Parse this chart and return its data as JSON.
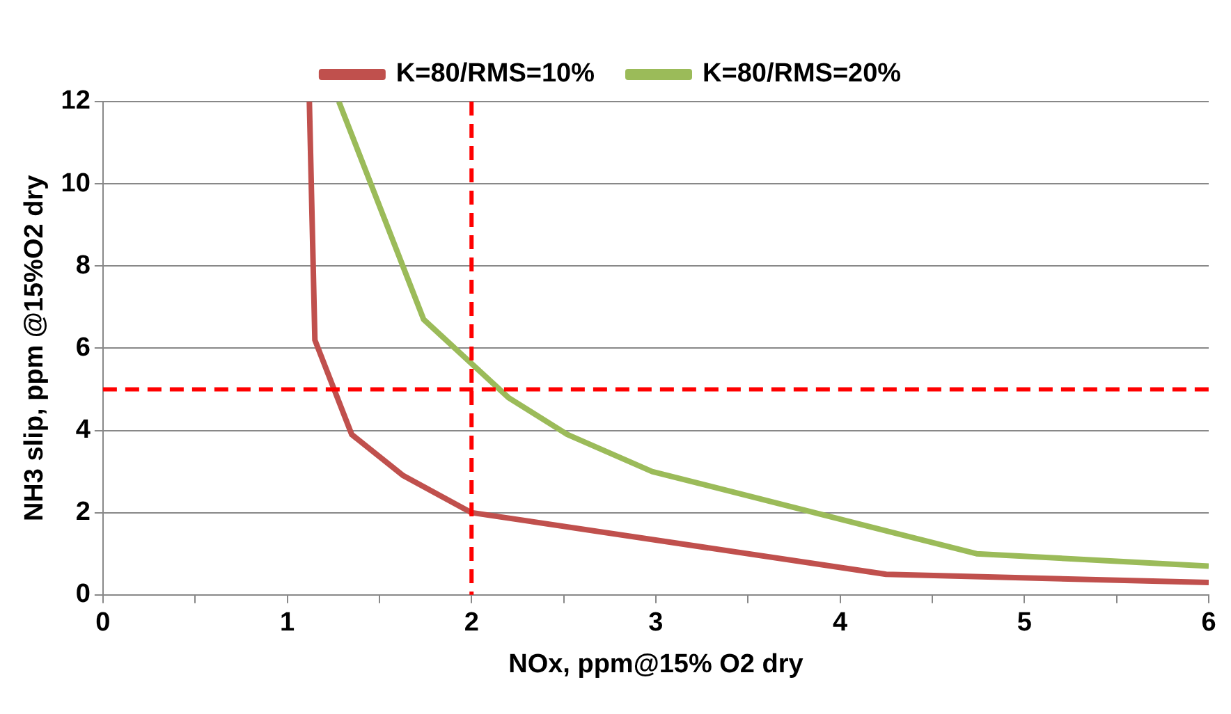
{
  "chart_data": {
    "type": "line",
    "xlabel": "NOx, ppm@15% O2 dry",
    "ylabel": "NH3 slip, ppm @15%O2 dry",
    "series": [
      {
        "name": "K=80/RMS=10%",
        "color": "#c0504d",
        "x": [
          1.12,
          1.15,
          1.35,
          1.63,
          2.0,
          4.25,
          6.0
        ],
        "values": [
          12,
          6.2,
          3.9,
          2.9,
          2.0,
          0.5,
          0.3
        ]
      },
      {
        "name": "K=80/RMS=20%",
        "color": "#9bbb59",
        "x": [
          1.28,
          1.74,
          2.2,
          2.52,
          2.98,
          4.74,
          6.0
        ],
        "values": [
          12,
          6.7,
          4.8,
          3.9,
          3.0,
          1.0,
          0.7
        ]
      }
    ],
    "xlim": [
      0,
      6
    ],
    "xticks": [
      0,
      {
        "value": 0.5,
        "label": null
      },
      1,
      {
        "value": 1.5,
        "label": null
      },
      2,
      {
        "value": 2.5,
        "label": null
      },
      3,
      {
        "value": 3.5,
        "label": null
      },
      4,
      {
        "value": 4.5,
        "label": null
      },
      5,
      {
        "value": 5.5,
        "label": null
      },
      6
    ],
    "ylim": [
      0,
      12
    ],
    "yticks": [
      0,
      2,
      4,
      6,
      8,
      10,
      12
    ],
    "ref_lines": [
      {
        "axis": "x",
        "value": 2,
        "color": "#ff0000",
        "line_style": "dashed"
      },
      {
        "axis": "y",
        "value": 5,
        "color": "#ff0000",
        "line_style": "dashed"
      }
    ],
    "grid": "y",
    "legend": "top",
    "marker": "none",
    "line_style": "solid"
  }
}
